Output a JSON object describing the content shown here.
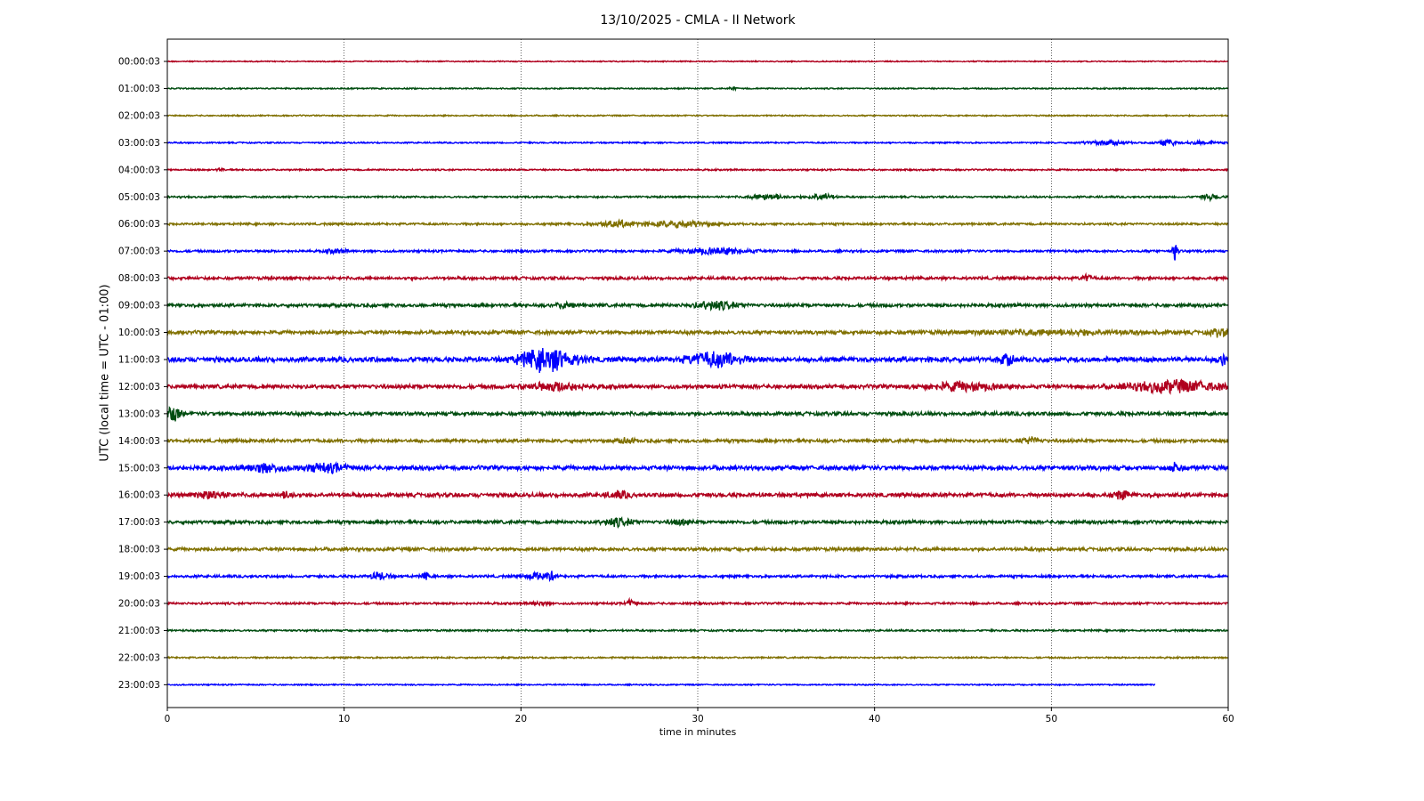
{
  "chart_data": {
    "type": "line",
    "title": "13/10/2025 - CMLA - II Network",
    "xlabel": "time in minutes",
    "ylabel": "UTC (local time = UTC - 01:00)",
    "xlim": [
      0,
      60
    ],
    "x_ticks": [
      0,
      10,
      20,
      30,
      40,
      50,
      60
    ],
    "grid": "vertical dotted",
    "line_colors": [
      "#b0001e",
      "#004d10",
      "#807000",
      "#0000ff"
    ],
    "rows": [
      {
        "label": "00:00:03",
        "amplitude": 0.15,
        "end_minute": 60,
        "events": []
      },
      {
        "label": "01:00:03",
        "amplitude": 0.18,
        "end_minute": 60,
        "events": [
          {
            "t": 32,
            "a": 0.35,
            "w": 0.2
          }
        ]
      },
      {
        "label": "02:00:03",
        "amplitude": 0.18,
        "end_minute": 60,
        "events": []
      },
      {
        "label": "03:00:03",
        "amplitude": 0.2,
        "end_minute": 60,
        "events": [
          {
            "t": 53,
            "a": 0.5,
            "w": 1.2
          },
          {
            "t": 56.5,
            "a": 1.0,
            "w": 0.5
          },
          {
            "t": 58.5,
            "a": 0.45,
            "w": 0.8
          }
        ]
      },
      {
        "label": "04:00:03",
        "amplitude": 0.22,
        "end_minute": 60,
        "events": [
          {
            "t": 3,
            "a": 0.4,
            "w": 0.2
          }
        ]
      },
      {
        "label": "05:00:03",
        "amplitude": 0.25,
        "end_minute": 60,
        "events": [
          {
            "t": 34,
            "a": 0.7,
            "w": 1
          },
          {
            "t": 37,
            "a": 1.0,
            "w": 0.6
          },
          {
            "t": 59,
            "a": 0.7,
            "w": 0.5
          }
        ]
      },
      {
        "label": "06:00:03",
        "amplitude": 0.3,
        "end_minute": 60,
        "events": [
          {
            "t": 25.5,
            "a": 0.8,
            "w": 1.2
          },
          {
            "t": 29,
            "a": 0.9,
            "w": 1.5
          }
        ]
      },
      {
        "label": "07:00:03",
        "amplitude": 0.32,
        "end_minute": 60,
        "events": [
          {
            "t": 9.5,
            "a": 0.5,
            "w": 0.5
          },
          {
            "t": 31,
            "a": 0.8,
            "w": 2
          },
          {
            "t": 57,
            "a": 2.8,
            "w": 0.15
          }
        ]
      },
      {
        "label": "08:00:03",
        "amplitude": 0.4,
        "end_minute": 60,
        "events": [
          {
            "t": 52,
            "a": 0.8,
            "w": 0.3
          }
        ]
      },
      {
        "label": "09:00:03",
        "amplitude": 0.45,
        "end_minute": 60,
        "events": [
          {
            "t": 31,
            "a": 1.0,
            "w": 1.2
          },
          {
            "t": 22.5,
            "a": 0.9,
            "w": 0.4
          }
        ]
      },
      {
        "label": "10:00:03",
        "amplitude": 0.5,
        "end_minute": 60,
        "events": [
          {
            "t": 50,
            "a": 0.5,
            "w": 5
          },
          {
            "t": 59.5,
            "a": 0.9,
            "w": 0.5
          }
        ]
      },
      {
        "label": "11:00:03",
        "amplitude": 0.7,
        "end_minute": 60,
        "events": [
          {
            "t": 21.5,
            "a": 3.0,
            "w": 1.5
          },
          {
            "t": 31,
            "a": 1.8,
            "w": 1.5
          },
          {
            "t": 47.5,
            "a": 1.2,
            "w": 0.4
          },
          {
            "t": 59.8,
            "a": 1.5,
            "w": 0.3
          }
        ]
      },
      {
        "label": "12:00:03",
        "amplitude": 0.55,
        "end_minute": 60,
        "events": [
          {
            "t": 22,
            "a": 1.0,
            "w": 1.5
          },
          {
            "t": 45,
            "a": 1.0,
            "w": 2
          },
          {
            "t": 57,
            "a": 1.5,
            "w": 2.5
          }
        ]
      },
      {
        "label": "13:00:03",
        "amplitude": 0.5,
        "end_minute": 60,
        "events": [
          {
            "t": 0.3,
            "a": 2.5,
            "w": 0.4
          }
        ]
      },
      {
        "label": "14:00:03",
        "amplitude": 0.45,
        "end_minute": 60,
        "events": [
          {
            "t": 48.8,
            "a": 0.9,
            "w": 0.5
          },
          {
            "t": 26,
            "a": 0.7,
            "w": 0.4
          }
        ]
      },
      {
        "label": "15:00:03",
        "amplitude": 0.6,
        "end_minute": 60,
        "events": [
          {
            "t": 5.5,
            "a": 1.1,
            "w": 1
          },
          {
            "t": 9,
            "a": 1.0,
            "w": 1.2
          },
          {
            "t": 57,
            "a": 1.5,
            "w": 0.3
          }
        ]
      },
      {
        "label": "16:00:03",
        "amplitude": 0.55,
        "end_minute": 60,
        "events": [
          {
            "t": 2.5,
            "a": 1.0,
            "w": 0.8
          },
          {
            "t": 6.8,
            "a": 1.0,
            "w": 0.3
          },
          {
            "t": 25.5,
            "a": 0.9,
            "w": 0.6
          },
          {
            "t": 54,
            "a": 1.0,
            "w": 0.5
          }
        ]
      },
      {
        "label": "17:00:03",
        "amplitude": 0.45,
        "end_minute": 60,
        "events": [
          {
            "t": 25.5,
            "a": 1.0,
            "w": 0.8
          },
          {
            "t": 29,
            "a": 0.6,
            "w": 0.5
          }
        ]
      },
      {
        "label": "18:00:03",
        "amplitude": 0.45,
        "end_minute": 60,
        "events": []
      },
      {
        "label": "19:00:03",
        "amplitude": 0.35,
        "end_minute": 60,
        "events": [
          {
            "t": 12,
            "a": 1.0,
            "w": 0.5
          },
          {
            "t": 14.6,
            "a": 1.0,
            "w": 0.2
          },
          {
            "t": 21,
            "a": 1.0,
            "w": 0.6
          },
          {
            "t": 21.7,
            "a": 1.1,
            "w": 0.15
          }
        ]
      },
      {
        "label": "20:00:03",
        "amplitude": 0.3,
        "end_minute": 60,
        "events": [
          {
            "t": 26.2,
            "a": 0.9,
            "w": 0.3
          },
          {
            "t": 21,
            "a": 0.5,
            "w": 0.5
          }
        ]
      },
      {
        "label": "21:00:03",
        "amplitude": 0.25,
        "end_minute": 60,
        "events": []
      },
      {
        "label": "22:00:03",
        "amplitude": 0.22,
        "end_minute": 60,
        "events": []
      },
      {
        "label": "23:00:03",
        "amplitude": 0.18,
        "end_minute": 55.9,
        "events": []
      }
    ]
  }
}
